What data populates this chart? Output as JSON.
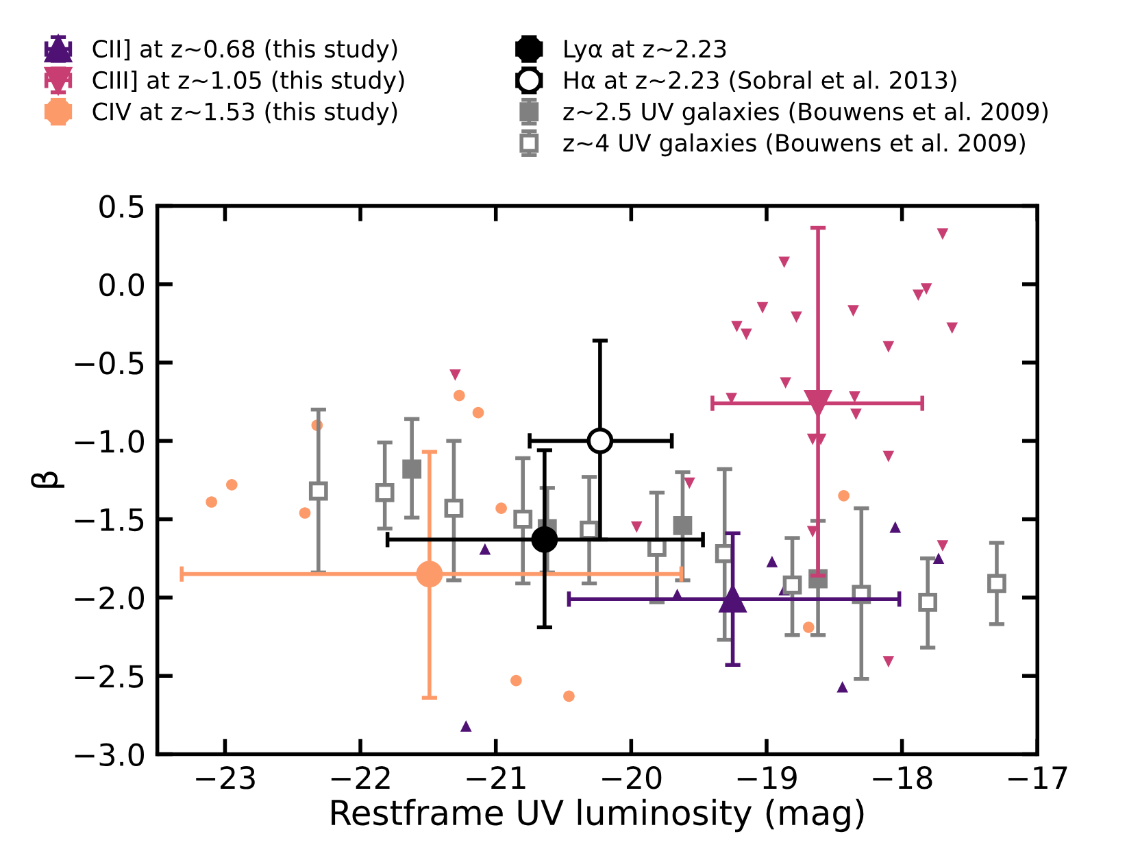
{
  "chart_data": {
    "type": "scatter",
    "xlabel": "Restframe UV luminosity (mag)",
    "ylabel": "β",
    "xlim": [
      -23.5,
      -17
    ],
    "ylim": [
      -3.0,
      0.5
    ],
    "xticks": [
      {
        "value": -23,
        "label": "−23"
      },
      {
        "value": -22,
        "label": "−22"
      },
      {
        "value": -21,
        "label": "−21"
      },
      {
        "value": -20,
        "label": "−20"
      },
      {
        "value": -19,
        "label": "−19"
      },
      {
        "value": -18,
        "label": "−18"
      },
      {
        "value": -17,
        "label": "−17"
      }
    ],
    "yticks": [
      {
        "value": -3.0,
        "label": "−3.0"
      },
      {
        "value": -2.5,
        "label": "−2.5"
      },
      {
        "value": -2.0,
        "label": "−2.0"
      },
      {
        "value": -1.5,
        "label": "−1.5"
      },
      {
        "value": -1.0,
        "label": "−1.0"
      },
      {
        "value": -0.5,
        "label": "−0.5"
      },
      {
        "value": 0.0,
        "label": "0.0"
      },
      {
        "value": 0.5,
        "label": "0.5"
      }
    ],
    "grid": false,
    "legend": "top",
    "series": [
      {
        "name": "CII] at z∼0.68 (this study)",
        "color": "#4f1173",
        "marker": "triangle",
        "x": [
          -19.25
        ],
        "values": [
          -2.01
        ],
        "xerrors": [
          [
            -20.46,
            -18.02
          ]
        ],
        "errors": [
          [
            -2.43,
            -1.59
          ]
        ]
      },
      {
        "name": "CIII] at z∼1.05 (this study)",
        "color": "#c83e73",
        "marker": "triangle_down",
        "x": [
          -18.62
        ],
        "values": [
          -0.76
        ],
        "xerrors": [
          [
            -19.4,
            -17.85
          ]
        ],
        "errors": [
          [
            -1.86,
            0.36
          ]
        ]
      },
      {
        "name": "CIV at z∼1.53 (this study)",
        "color": "#fd9a6a",
        "marker": "circle",
        "x": [
          -21.49
        ],
        "values": [
          -1.85
        ],
        "xerrors": [
          [
            -23.32,
            -19.63
          ]
        ],
        "errors": [
          [
            -2.64,
            -1.07
          ]
        ]
      },
      {
        "name": "Lyα at z∼2.23",
        "color": "#000000",
        "marker": "circle",
        "x": [
          -20.64
        ],
        "values": [
          -1.63
        ],
        "xerrors": [
          [
            -21.8,
            -19.47
          ]
        ],
        "errors": [
          [
            -2.19,
            -1.06
          ]
        ]
      },
      {
        "name": "Hα at z∼2.23 (Sobral et al. 2013)",
        "color": "#000000",
        "marker": "circle",
        "colors": [
          "#ffffff"
        ],
        "x": [
          -20.23
        ],
        "values": [
          -1.0
        ],
        "xerrors": [
          [
            -20.75,
            -19.7
          ]
        ],
        "errors": [
          [
            -1.63,
            -0.36
          ]
        ]
      },
      {
        "name": "z∼2.5 UV galaxies (Bouwens et al. 2009)",
        "color": "#808080",
        "marker": "square",
        "x": [
          -21.62,
          -20.62,
          -19.62,
          -18.62
        ],
        "values": [
          -1.18,
          -1.56,
          -1.54,
          -1.88
        ],
        "errors": [
          [
            -1.49,
            -0.86
          ],
          [
            -1.84,
            -1.3
          ],
          [
            -1.89,
            -1.2
          ],
          [
            -2.24,
            -1.51
          ]
        ]
      },
      {
        "name": "z∼4 UV galaxies (Bouwens et al. 2009)",
        "color": "#808080",
        "marker": "square",
        "colors": [
          "#ffffff",
          "#ffffff",
          "#ffffff",
          "#ffffff",
          "#ffffff",
          "#ffffff",
          "#ffffff",
          "#ffffff",
          "#ffffff",
          "#ffffff",
          "#ffffff"
        ],
        "x": [
          -22.31,
          -21.82,
          -21.31,
          -20.8,
          -20.31,
          -19.81,
          -19.31,
          -18.81,
          -18.3,
          -17.81,
          -17.3
        ],
        "values": [
          -1.32,
          -1.33,
          -1.43,
          -1.5,
          -1.57,
          -1.68,
          -1.72,
          -1.92,
          -1.98,
          -2.03,
          -1.91
        ],
        "errors": [
          [
            -1.84,
            -0.8
          ],
          [
            -1.56,
            -1.01
          ],
          [
            -1.89,
            -1.0
          ],
          [
            -1.91,
            -1.11
          ],
          [
            -1.91,
            -1.23
          ],
          [
            -2.03,
            -1.33
          ],
          [
            -2.27,
            -1.18
          ],
          [
            -2.24,
            -1.62
          ],
          [
            -2.52,
            -1.43
          ],
          [
            -2.32,
            -1.75
          ],
          [
            -2.17,
            -1.65
          ]
        ]
      },
      {
        "color": "#4f1173",
        "marker": "triangle",
        "x": [
          -21.08,
          -21.22,
          -19.66,
          -18.96,
          -18.87,
          -18.05,
          -17.73,
          -18.44
        ],
        "values": [
          -1.69,
          -2.82,
          -1.98,
          -1.77,
          -1.95,
          -1.55,
          -1.75,
          -2.57
        ]
      },
      {
        "color": "#c83e73",
        "marker": "triangle_down",
        "x": [
          -18.87,
          -19.03,
          -18.78,
          -19.22,
          -19.15,
          -18.86,
          -19.26,
          -18.66,
          -18.6,
          -19.57,
          -19.96,
          -18.66,
          -17.7,
          -17.82,
          -17.88,
          -18.36,
          -17.63,
          -18.1,
          -18.35,
          -18.34,
          -18.1,
          -17.7,
          -18.1,
          -21.3
        ],
        "values": [
          0.14,
          -0.15,
          -0.21,
          -0.27,
          -0.32,
          -0.63,
          -0.73,
          -0.99,
          -0.99,
          -1.27,
          -1.55,
          -1.58,
          0.32,
          -0.03,
          -0.07,
          -0.17,
          -0.28,
          -0.4,
          -0.72,
          -0.83,
          -1.1,
          -1.67,
          -2.41,
          -0.58
        ]
      },
      {
        "color": "#fd9a6a",
        "marker": "circle",
        "x": [
          -23.1,
          -22.95,
          -22.41,
          -22.32,
          -21.27,
          -21.13,
          -20.96,
          -20.85,
          -20.46,
          -18.69,
          -18.43
        ],
        "values": [
          -1.39,
          -1.28,
          -1.46,
          -0.9,
          -0.71,
          -0.82,
          -1.43,
          -2.53,
          -2.63,
          -2.19,
          -1.35
        ]
      }
    ]
  }
}
